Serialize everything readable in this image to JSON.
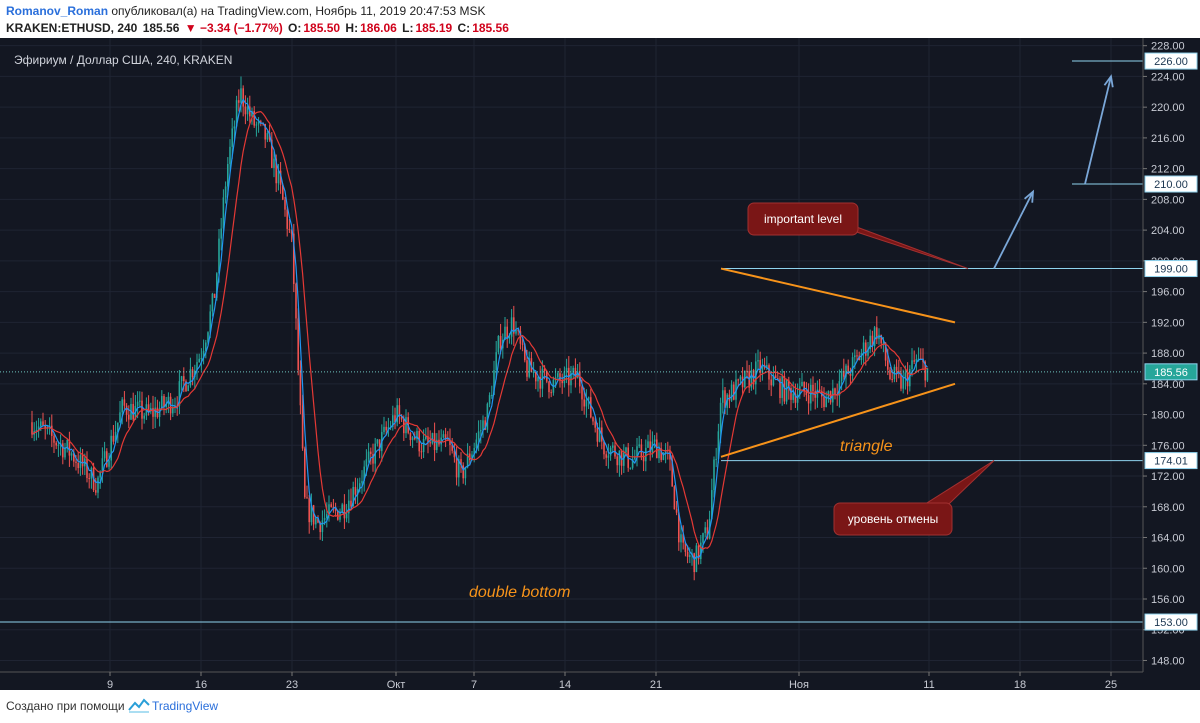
{
  "header": {
    "author": "Romanov_Roman",
    "published_text": "опубликовал(а) на TradingView.com, Ноябрь 11, 2019 20:47:53 MSK",
    "symbol": "KRAKEN:ETHUSD, 240",
    "last_price": "185.56",
    "change": "▼ −3.34 (−1.77%)",
    "open_label": "O:",
    "open": "185.50",
    "high_label": "H:",
    "high": "186.06",
    "low_label": "L:",
    "low": "185.19",
    "close_label": "C:",
    "close": "185.56"
  },
  "colors": {
    "background": "#131722",
    "up": "#26a69a",
    "down": "#ef5350",
    "ma_fast": "#2196f3",
    "ma_slow": "#e53935",
    "level_line": "#8fd3ee",
    "triangle": "#f7931a",
    "arrow": "#7aa7d8",
    "callout": "#7a1616"
  },
  "chart_data": {
    "type": "candlestick",
    "title": "Эфириум / Доллар США, 240, KRAKEN",
    "x_tick_labels": [
      "9",
      "16",
      "23",
      "Окт",
      "7",
      "14",
      "21",
      "Ноя",
      "11",
      "18",
      "25"
    ],
    "y_tick_labels": [
      "148.00",
      "152.00",
      "156.00",
      "160.00",
      "164.00",
      "168.00",
      "172.00",
      "176.00",
      "180.00",
      "184.00",
      "188.00",
      "192.00",
      "196.00",
      "200.00",
      "204.00",
      "208.00",
      "212.00",
      "216.00",
      "220.00",
      "224.00",
      "228.00"
    ],
    "ylim": [
      146.5,
      229
    ],
    "current_price": "185.56",
    "levels": [
      "226.00",
      "210.00",
      "199.00",
      "174.01",
      "153.00"
    ],
    "price_path": [
      {
        "date": "2019-09-03",
        "close": 179
      },
      {
        "date": "2019-09-06",
        "close": 175
      },
      {
        "date": "2019-09-08",
        "close": 171
      },
      {
        "date": "2019-09-10",
        "close": 181
      },
      {
        "date": "2019-09-12",
        "close": 180
      },
      {
        "date": "2019-09-14",
        "close": 182
      },
      {
        "date": "2019-09-16",
        "close": 188
      },
      {
        "date": "2019-09-17",
        "close": 195
      },
      {
        "date": "2019-09-18",
        "close": 212
      },
      {
        "date": "2019-09-19",
        "close": 222
      },
      {
        "date": "2019-09-20",
        "close": 218
      },
      {
        "date": "2019-09-21",
        "close": 216
      },
      {
        "date": "2019-09-22",
        "close": 210
      },
      {
        "date": "2019-09-23",
        "close": 202
      },
      {
        "date": "2019-09-24",
        "close": 168
      },
      {
        "date": "2019-09-25",
        "close": 166
      },
      {
        "date": "2019-09-27",
        "close": 168
      },
      {
        "date": "2019-09-29",
        "close": 174
      },
      {
        "date": "2019-10-01",
        "close": 180
      },
      {
        "date": "2019-10-03",
        "close": 176
      },
      {
        "date": "2019-10-05",
        "close": 176
      },
      {
        "date": "2019-10-06",
        "close": 172
      },
      {
        "date": "2019-10-08",
        "close": 180
      },
      {
        "date": "2019-10-09",
        "close": 190
      },
      {
        "date": "2019-10-10",
        "close": 192
      },
      {
        "date": "2019-10-11",
        "close": 186
      },
      {
        "date": "2019-10-13",
        "close": 184
      },
      {
        "date": "2019-10-15",
        "close": 185
      },
      {
        "date": "2019-10-16",
        "close": 180
      },
      {
        "date": "2019-10-17",
        "close": 176
      },
      {
        "date": "2019-10-19",
        "close": 174
      },
      {
        "date": "2019-10-21",
        "close": 176
      },
      {
        "date": "2019-10-22",
        "close": 174
      },
      {
        "date": "2019-10-23",
        "close": 162
      },
      {
        "date": "2019-10-24",
        "close": 161
      },
      {
        "date": "2019-10-25",
        "close": 165
      },
      {
        "date": "2019-10-26",
        "close": 182
      },
      {
        "date": "2019-10-27",
        "close": 183
      },
      {
        "date": "2019-10-29",
        "close": 186
      },
      {
        "date": "2019-10-31",
        "close": 183
      },
      {
        "date": "2019-11-02",
        "close": 183
      },
      {
        "date": "2019-11-03",
        "close": 182
      },
      {
        "date": "2019-11-05",
        "close": 186
      },
      {
        "date": "2019-11-07",
        "close": 191
      },
      {
        "date": "2019-11-08",
        "close": 185
      },
      {
        "date": "2019-11-09",
        "close": 184
      },
      {
        "date": "2019-11-10",
        "close": 187
      },
      {
        "date": "2019-11-11",
        "close": 185.56
      }
    ],
    "triangle": {
      "upper": [
        {
          "date": "2019-10-26",
          "value": 199
        },
        {
          "date": "2019-11-13",
          "value": 192
        }
      ],
      "lower": [
        {
          "date": "2019-10-26",
          "value": 174.5
        },
        {
          "date": "2019-11-13",
          "value": 184
        }
      ]
    },
    "projection": [
      {
        "date": "2019-11-16",
        "value": 199
      },
      {
        "date": "2019-11-19",
        "value": 209
      },
      {
        "date": "2019-11-23",
        "value": 210
      },
      {
        "date": "2019-11-25",
        "value": 224
      }
    ],
    "annotations": [
      {
        "text": "important level"
      },
      {
        "text": "уровень отмены"
      },
      {
        "text": "triangle"
      },
      {
        "text": "double bottom"
      }
    ]
  },
  "footer": {
    "created_text": "Создано при помощи",
    "brand": "TradingView"
  }
}
